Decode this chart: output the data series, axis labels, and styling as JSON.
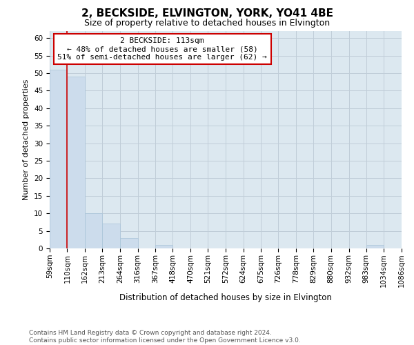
{
  "title": "2, BECKSIDE, ELVINGTON, YORK, YO41 4BE",
  "subtitle": "Size of property relative to detached houses in Elvington",
  "xlabel": "Distribution of detached houses by size in Elvington",
  "ylabel": "Number of detached properties",
  "bar_color": "#ccdcec",
  "bar_edge_color": "#a8c4d8",
  "grid_color": "#c0cdd8",
  "bg_color": "#dce8f0",
  "property_line_x": 110,
  "property_line_color": "#cc0000",
  "annotation_text": "2 BECKSIDE: 113sqm\n← 48% of detached houses are smaller (58)\n51% of semi-detached houses are larger (62) →",
  "annotation_box_color": "#ffffff",
  "annotation_box_edge_color": "#cc0000",
  "bins": [
    59,
    110,
    162,
    213,
    264,
    316,
    367,
    418,
    470,
    521,
    572,
    624,
    675,
    726,
    778,
    829,
    880,
    932,
    983,
    1034,
    1086
  ],
  "bin_labels": [
    "59sqm",
    "110sqm",
    "162sqm",
    "213sqm",
    "264sqm",
    "316sqm",
    "367sqm",
    "418sqm",
    "470sqm",
    "521sqm",
    "572sqm",
    "624sqm",
    "675sqm",
    "726sqm",
    "778sqm",
    "829sqm",
    "880sqm",
    "932sqm",
    "983sqm",
    "1034sqm",
    "1086sqm"
  ],
  "counts": [
    51,
    49,
    10,
    7,
    3,
    0,
    1,
    0,
    0,
    0,
    0,
    0,
    0,
    0,
    0,
    0,
    0,
    0,
    1,
    0
  ],
  "ylim": [
    0,
    62
  ],
  "yticks": [
    0,
    5,
    10,
    15,
    20,
    25,
    30,
    35,
    40,
    45,
    50,
    55,
    60
  ],
  "footer": "Contains HM Land Registry data © Crown copyright and database right 2024.\nContains public sector information licensed under the Open Government Licence v3.0.",
  "footer_color": "#555555",
  "title_fontsize": 11,
  "subtitle_fontsize": 9,
  "ylabel_fontsize": 8,
  "xlabel_fontsize": 8.5,
  "tick_fontsize": 7.5,
  "annotation_fontsize": 8,
  "footer_fontsize": 6.5
}
